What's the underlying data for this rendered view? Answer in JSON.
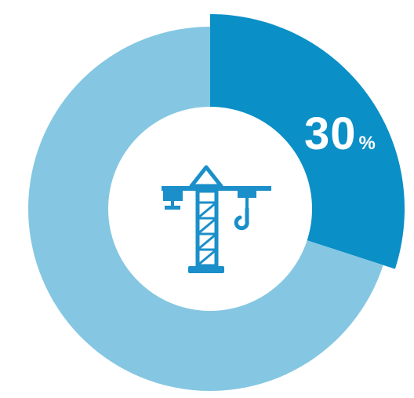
{
  "chart_data": {
    "type": "pie",
    "style": "donut",
    "slices": [
      {
        "value": 30,
        "color": "#0a8fc7"
      },
      {
        "value": 70,
        "color": "#85c7e2"
      }
    ],
    "labels": {
      "highlight_value": "30",
      "highlight_unit": "%"
    },
    "center_icon": "crane-icon",
    "icon_color": "#1a8fc9",
    "highlight_slice": 0,
    "background": "#ffffff"
  }
}
